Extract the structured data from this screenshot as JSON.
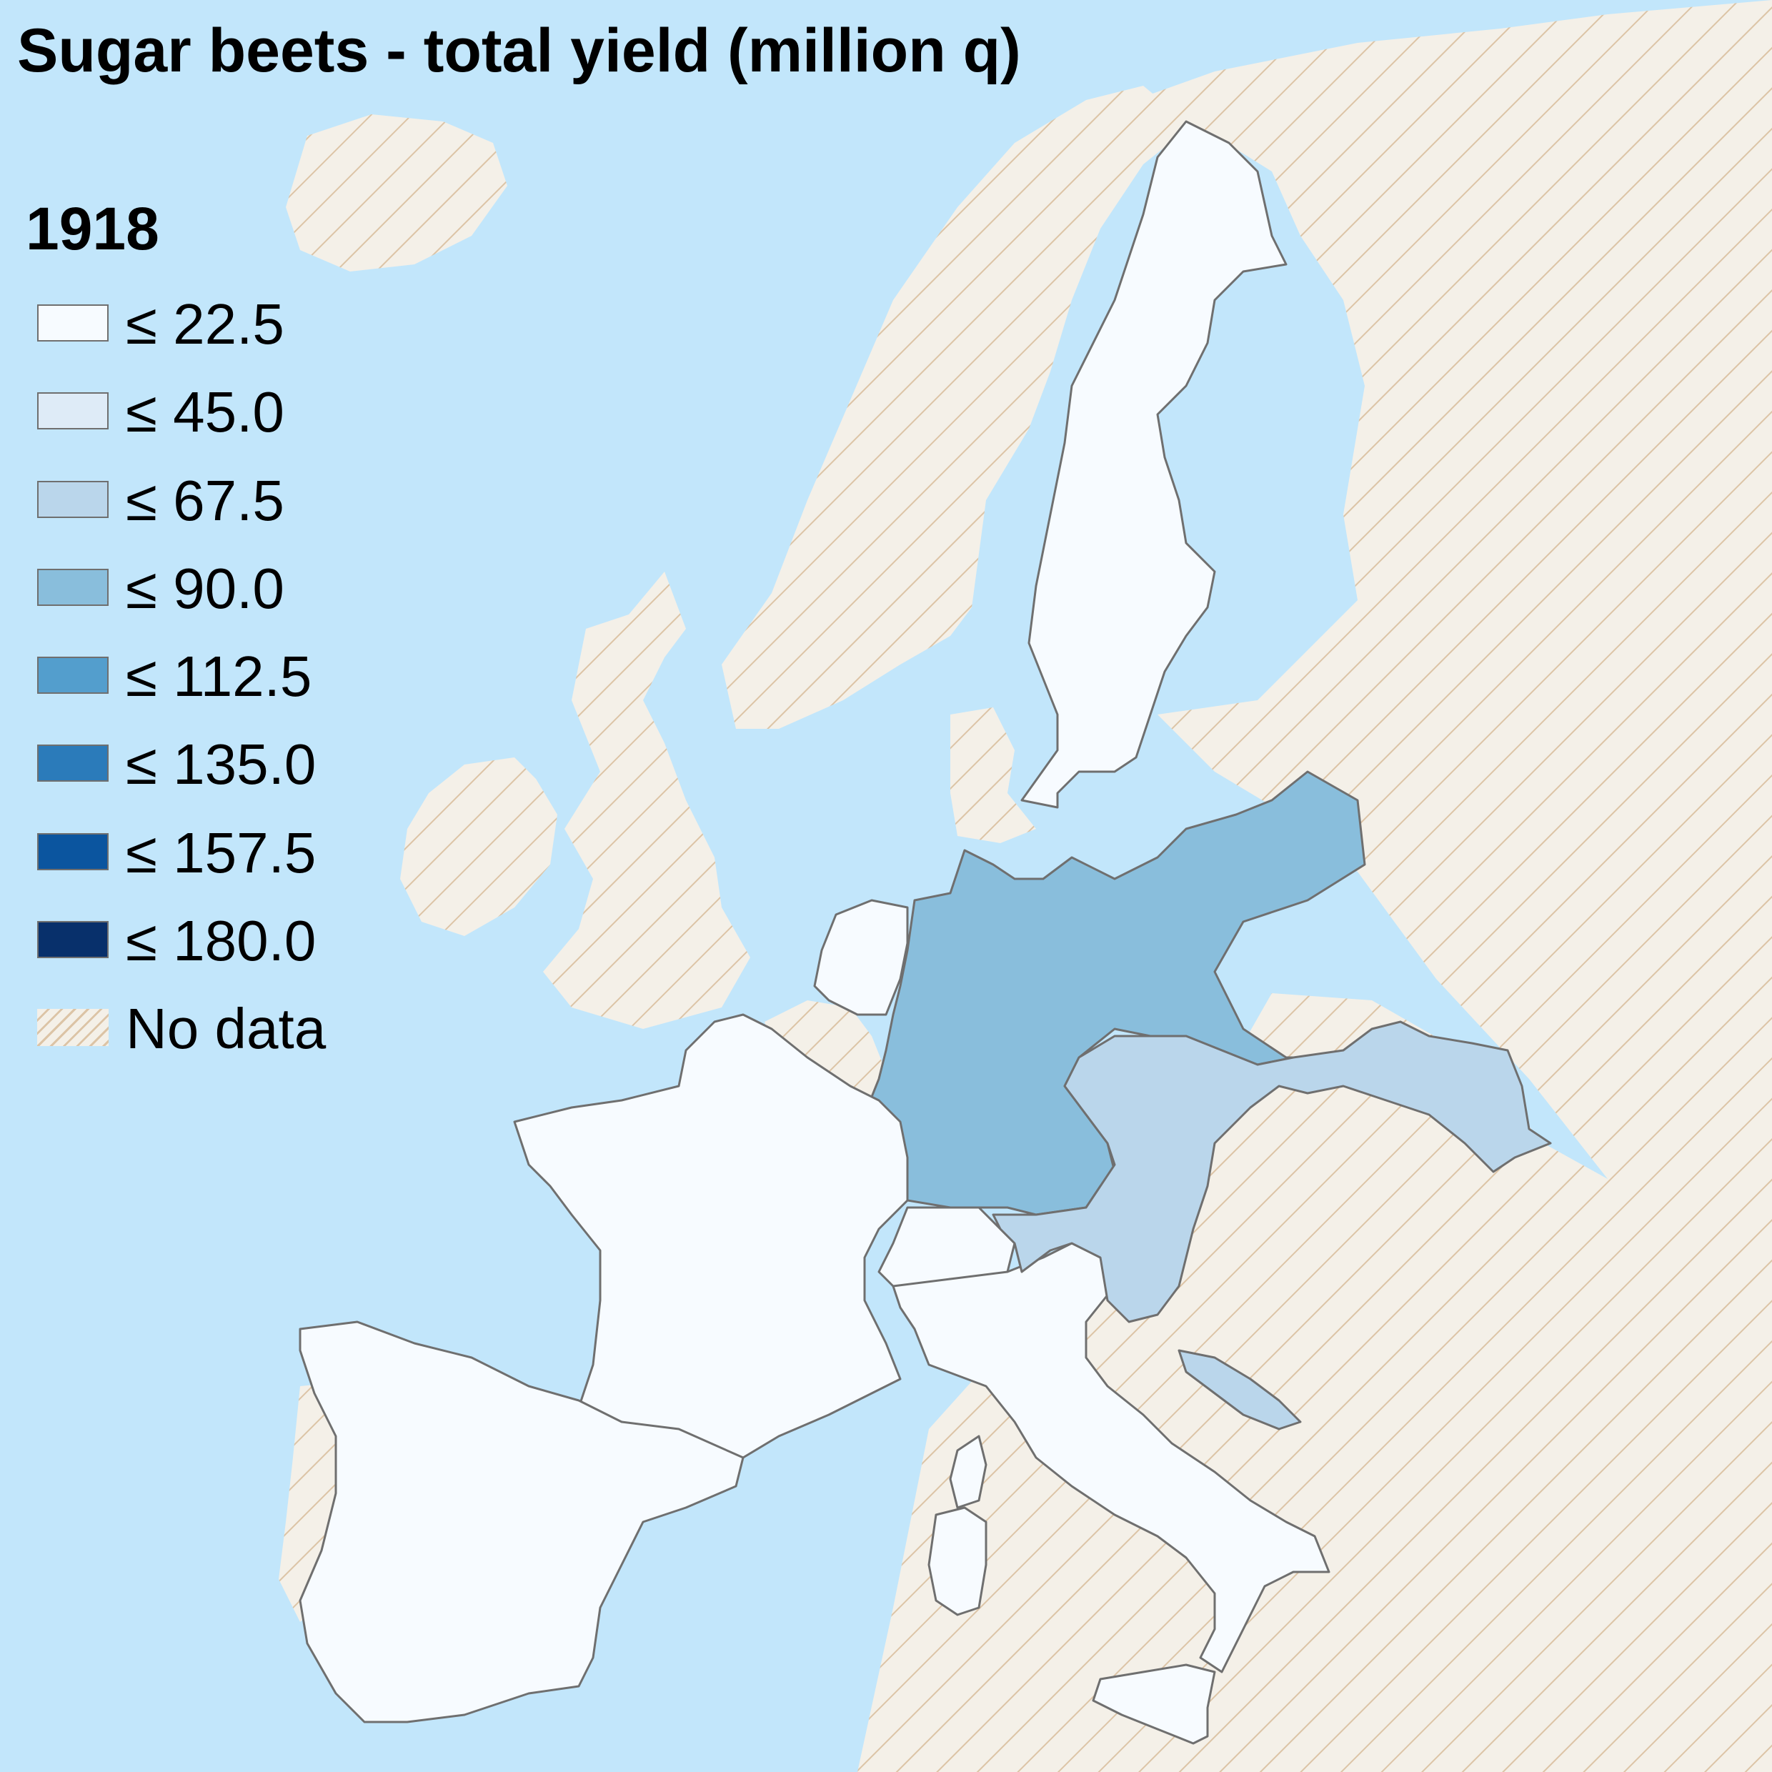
{
  "title": "Sugar beets - total yield (million q)",
  "year": "1918",
  "legend": {
    "items": [
      {
        "label": "≤ 22.5",
        "color": "#f7fbff"
      },
      {
        "label": "≤ 45.0",
        "color": "#deebf7"
      },
      {
        "label": "≤ 67.5",
        "color": "#bad6eb"
      },
      {
        "label": "≤ 90.0",
        "color": "#89bedc"
      },
      {
        "label": "≤ 112.5",
        "color": "#539ecd"
      },
      {
        "label": "≤ 135.0",
        "color": "#2b7bba"
      },
      {
        "label": "≤ 157.5",
        "color": "#0b559f"
      },
      {
        "label": "≤ 180.0",
        "color": "#08306b"
      }
    ],
    "nodata_label": "No data"
  },
  "colors": {
    "sea": "#c2e6fb",
    "nodata_base": "#f4f0e8",
    "nodata_hatch": "#dcc4a6",
    "border": "#6f6f6f"
  },
  "chart_data": {
    "type": "choropleth",
    "title": "Sugar beets - total yield (million q)",
    "year": "1918",
    "unit": "million q",
    "bins": [
      22.5,
      45.0,
      67.5,
      90.0,
      112.5,
      135.0,
      157.5,
      180.0
    ],
    "regions": [
      {
        "region": "Sweden",
        "bin": "≤ 22.5"
      },
      {
        "region": "Netherlands",
        "bin": "≤ 22.5"
      },
      {
        "region": "France",
        "bin": "≤ 22.5"
      },
      {
        "region": "Spain",
        "bin": "≤ 22.5"
      },
      {
        "region": "Switzerland",
        "bin": "≤ 22.5"
      },
      {
        "region": "Italy",
        "bin": "≤ 22.5"
      },
      {
        "region": "Germany",
        "bin": "≤ 90.0"
      },
      {
        "region": "Austria-Hungary",
        "bin": "≤ 67.5"
      },
      {
        "region": "Belgium",
        "bin": "No data"
      },
      {
        "region": "Denmark",
        "bin": "No data"
      },
      {
        "region": "United Kingdom",
        "bin": "No data"
      },
      {
        "region": "Ireland",
        "bin": "No data"
      },
      {
        "region": "Norway",
        "bin": "No data"
      },
      {
        "region": "Portugal",
        "bin": "No data"
      },
      {
        "region": "Russia",
        "bin": "No data"
      },
      {
        "region": "Iceland",
        "bin": "No data"
      }
    ]
  }
}
